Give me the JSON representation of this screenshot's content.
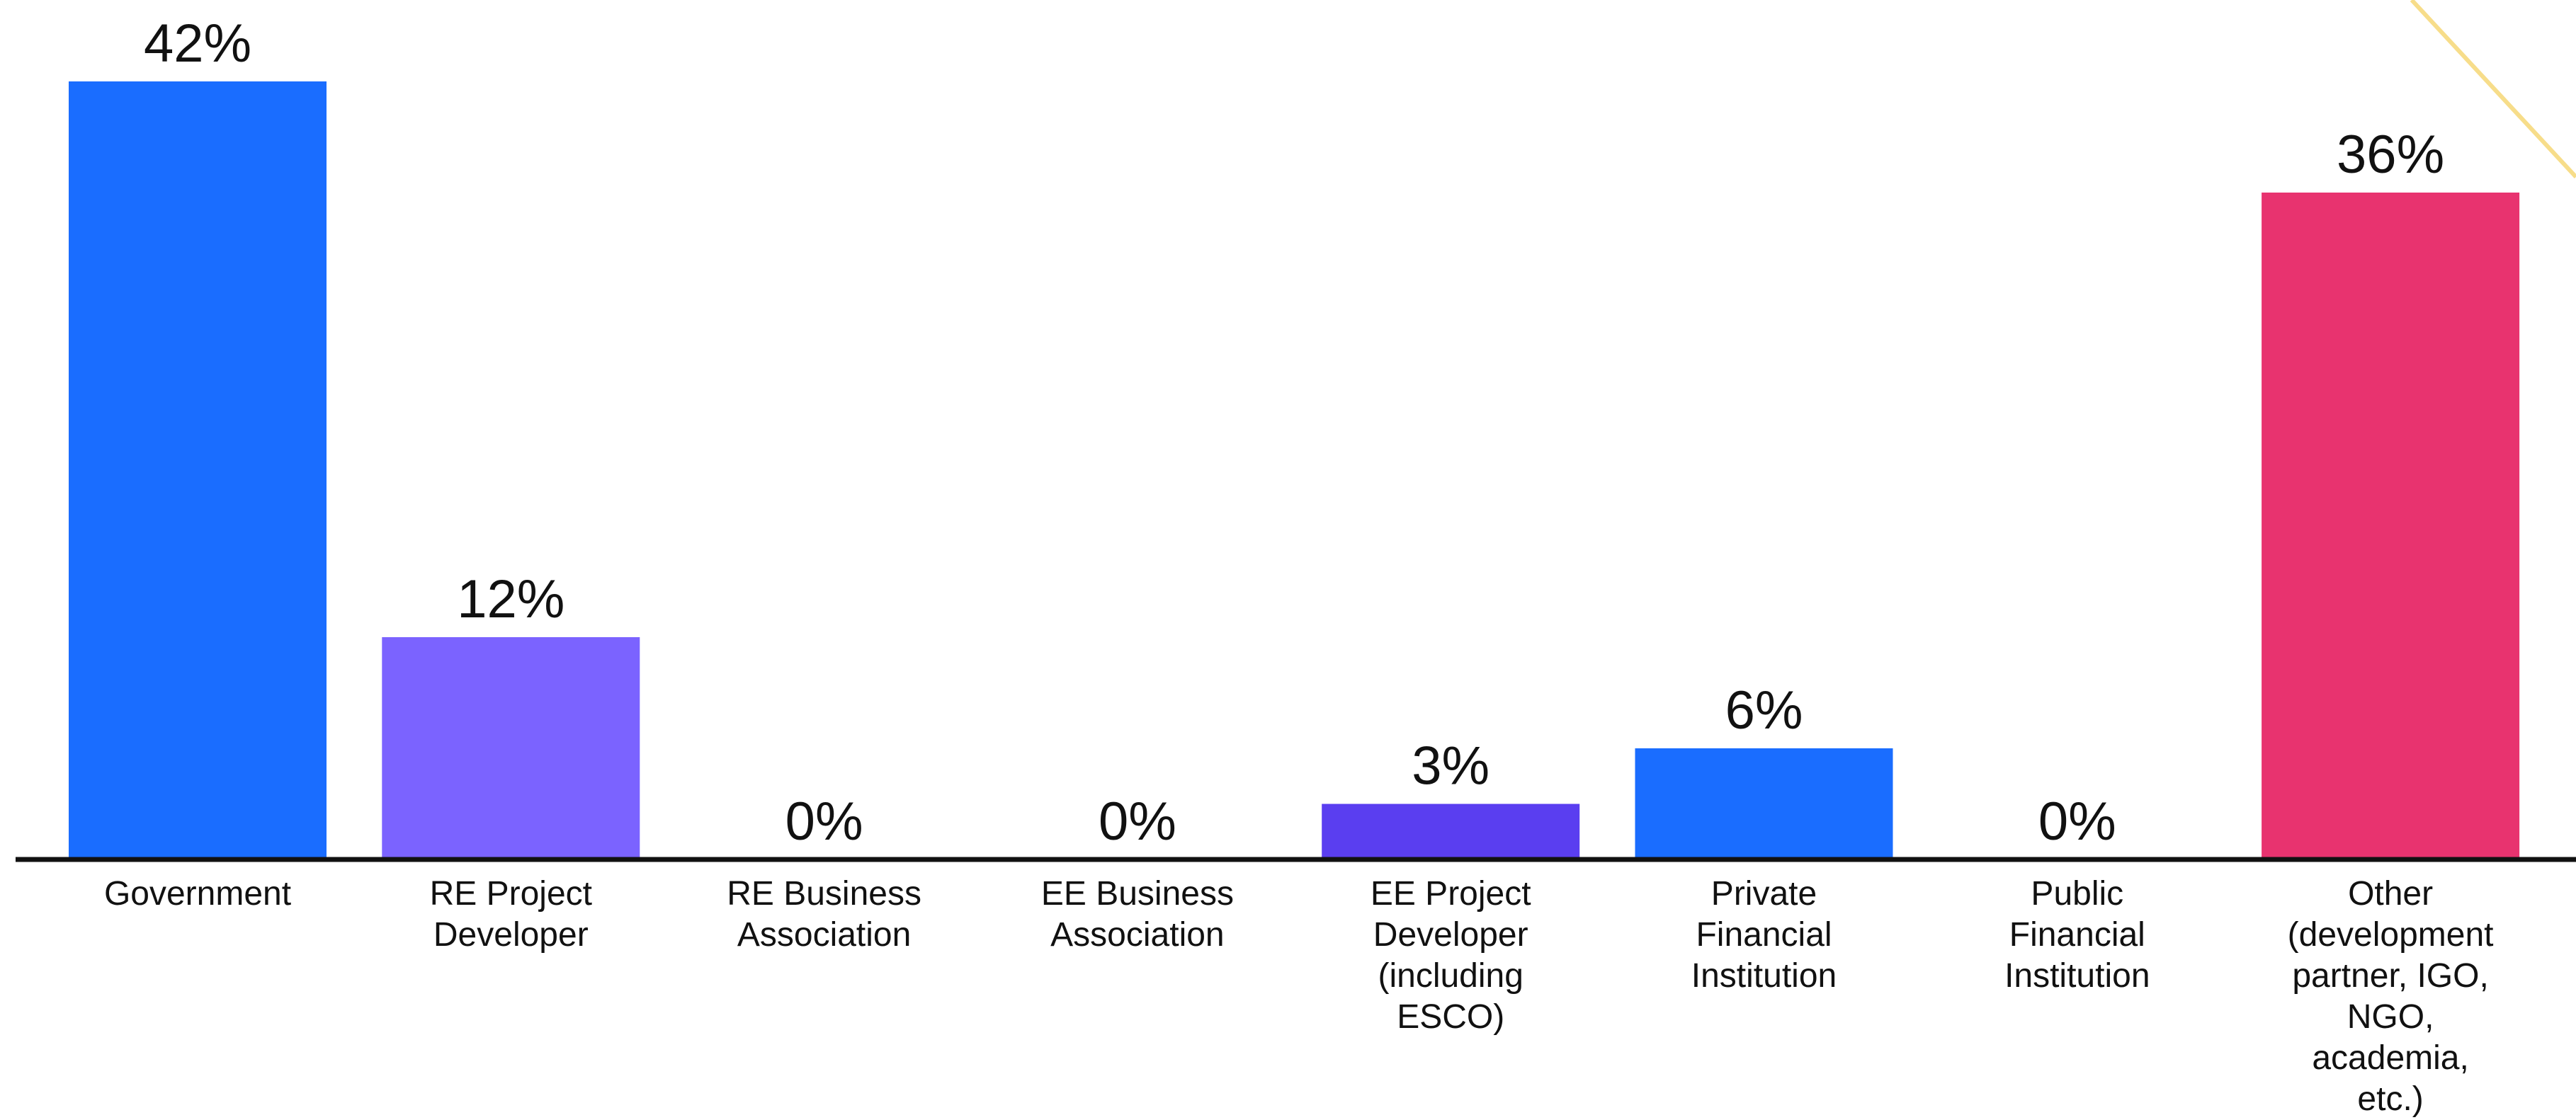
{
  "chart_data": {
    "type": "bar",
    "title": "",
    "xlabel": "",
    "ylabel": "",
    "ylim": [
      0,
      42
    ],
    "grid": false,
    "legend": "none",
    "unit": "%",
    "categories": [
      "Government",
      "RE Project Developer",
      "RE Business Association",
      "EE Business Association",
      "EE Project Developer (including ESCO)",
      "Private Financial Institution",
      "Public Financial Institution",
      "Other (development partner, IGO, NGO, academia, etc.)"
    ],
    "category_label_lines": [
      [
        "Government"
      ],
      [
        "RE Project",
        "Developer"
      ],
      [
        "RE Business",
        "Association"
      ],
      [
        "EE Business",
        "Association"
      ],
      [
        "EE Project",
        "Developer",
        "(including",
        "ESCO)"
      ],
      [
        "Private",
        "Financial",
        "Institution"
      ],
      [
        "Public",
        "Financial",
        "Institution"
      ],
      [
        "Other",
        "(development",
        "partner, IGO,",
        "NGO,",
        "academia,",
        "etc.)"
      ]
    ],
    "values": [
      42,
      12,
      0,
      0,
      3,
      6,
      0,
      36
    ],
    "data_labels": [
      "42%",
      "12%",
      "0%",
      "0%",
      "3%",
      "6%",
      "0%",
      "36%"
    ],
    "colors": [
      "#1a6dff",
      "#7b63ff",
      "#7b63ff",
      "#7b63ff",
      "#5a3ef0",
      "#1a6dff",
      "#1a6dff",
      "#e8336f"
    ],
    "axis_color": "#111111",
    "decoration_color": "#f7dd8a"
  }
}
